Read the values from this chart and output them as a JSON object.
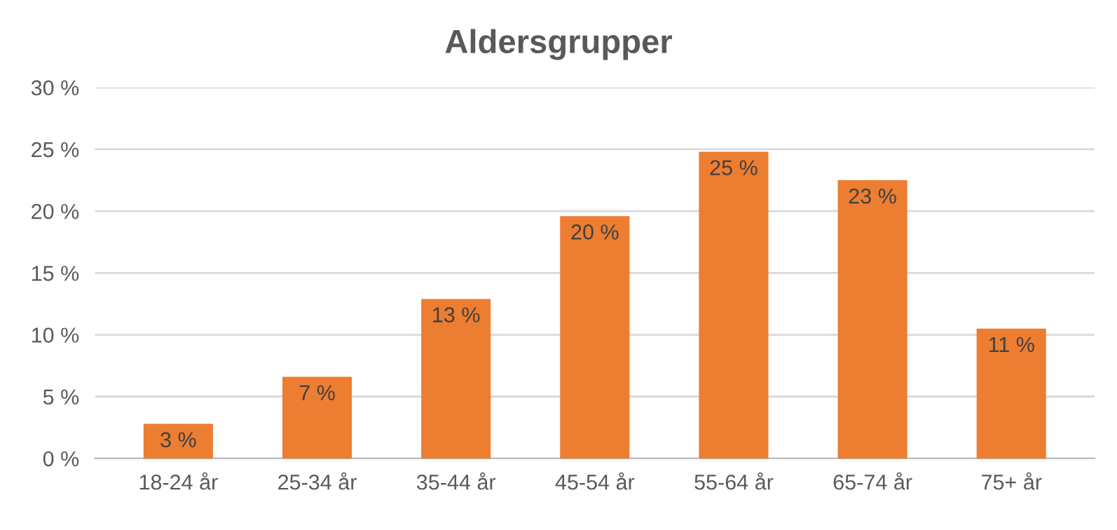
{
  "chart_data": {
    "type": "bar",
    "title": "Aldersgrupper",
    "categories": [
      "18-24 år",
      "25-34 år",
      "35-44 år",
      "45-54 år",
      "55-64 år",
      "65-74 år",
      "75+ år"
    ],
    "values": [
      2.8,
      6.6,
      12.9,
      19.6,
      24.8,
      22.5,
      10.5
    ],
    "value_labels": [
      "3 %",
      "7 %",
      "13 %",
      "20 %",
      "25 %",
      "23 %",
      "11 %"
    ],
    "color": "#ed7d31",
    "ylim": [
      0,
      30
    ],
    "yticks": [
      {
        "value": 0,
        "label": "0 %"
      },
      {
        "value": 5,
        "label": "5 %"
      },
      {
        "value": 10,
        "label": "10 %"
      },
      {
        "value": 15,
        "label": "15 %"
      },
      {
        "value": 20,
        "label": "20 %"
      },
      {
        "value": 25,
        "label": "25 %"
      },
      {
        "value": 30,
        "label": "30 %"
      }
    ],
    "grid": "y",
    "legend": false
  }
}
